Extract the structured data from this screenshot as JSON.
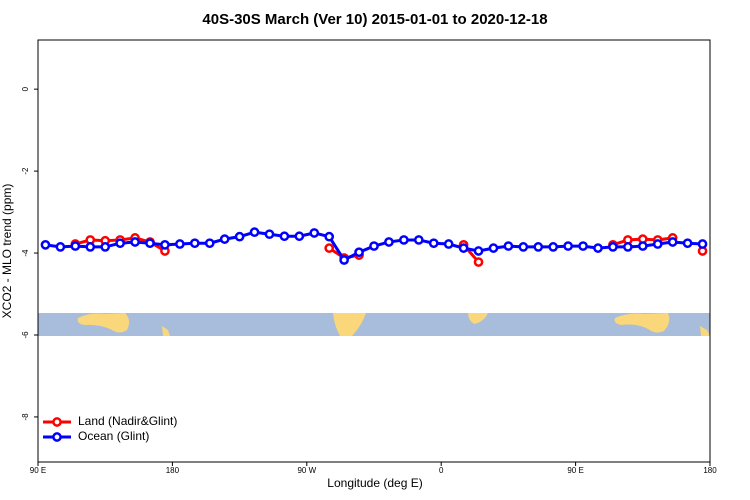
{
  "chart_data": {
    "type": "line",
    "title": "40S-30S March (Ver 10)   2015-01-01 to 2020-12-18",
    "xlabel": "Longitude (deg E)",
    "ylabel": "XCO2 - MLO trend (ppm)",
    "x": [
      95,
      105,
      115,
      125,
      135,
      145,
      155,
      165,
      175,
      185,
      195,
      205,
      215,
      225,
      235,
      245,
      255,
      265,
      275,
      285,
      295,
      305,
      315,
      325,
      335,
      345,
      355,
      365,
      375,
      385,
      395,
      405,
      415,
      425,
      435,
      445,
      455,
      465,
      475,
      485,
      495,
      505,
      515,
      525,
      535
    ],
    "series": [
      {
        "name": "Land (Nadir&Glint)",
        "color": "#ff0000",
        "values": [
          null,
          null,
          -3.78,
          -3.68,
          -3.7,
          -3.68,
          -3.63,
          -3.73,
          -3.95,
          null,
          null,
          null,
          null,
          null,
          null,
          null,
          null,
          null,
          null,
          -3.88,
          -4.12,
          -4.05,
          null,
          null,
          null,
          null,
          null,
          null,
          -3.8,
          -4.22,
          null,
          null,
          null,
          null,
          null,
          null,
          null,
          null,
          -3.8,
          -3.68,
          -3.66,
          -3.68,
          -3.63,
          null,
          -3.95
        ]
      },
      {
        "name": "Ocean (Glint)",
        "color": "#0000ff",
        "values": [
          -3.8,
          -3.85,
          -3.83,
          -3.85,
          -3.85,
          -3.76,
          -3.73,
          -3.76,
          -3.8,
          -3.78,
          -3.76,
          -3.76,
          -3.66,
          -3.6,
          -3.49,
          -3.54,
          -3.59,
          -3.59,
          -3.51,
          -3.6,
          -4.17,
          -3.98,
          -3.83,
          -3.73,
          -3.68,
          -3.68,
          -3.76,
          -3.78,
          -3.88,
          -3.95,
          -3.88,
          -3.83,
          -3.85,
          -3.85,
          -3.85,
          -3.83,
          -3.83,
          -3.88,
          -3.85,
          -3.85,
          -3.83,
          -3.78,
          -3.73,
          -3.76,
          -3.78
        ]
      }
    ],
    "xlim": [
      90,
      540
    ],
    "xticks": [
      {
        "value": 90,
        "label": "90 E"
      },
      180,
      {
        "value": 270,
        "label": "90 W"
      },
      {
        "value": 360,
        "label": "0"
      },
      {
        "value": 450,
        "label": "90 E"
      },
      {
        "value": 540,
        "label": "180"
      }
    ],
    "ylim": [
      -9.1,
      1.2
    ],
    "yticks": [
      -8,
      -6,
      -4,
      -2,
      0
    ],
    "legend": "bottom-left"
  }
}
